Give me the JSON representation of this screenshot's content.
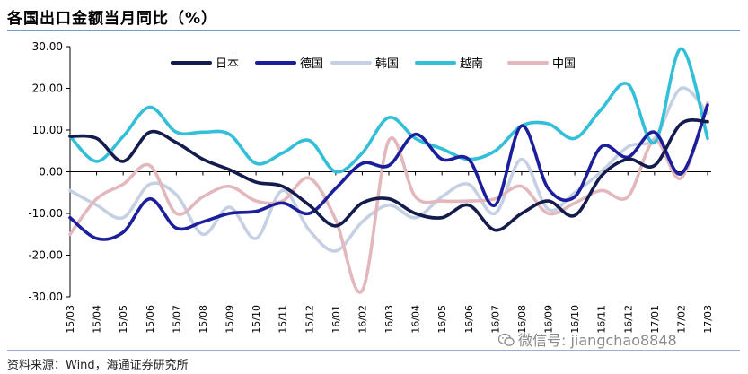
{
  "header": {
    "title": "各国出口金额当月同比（%）"
  },
  "footer": {
    "source": "资料来源：Wind，海通证券研究所"
  },
  "watermark": {
    "text": "微信号: jiangchao8848"
  },
  "chart_data": {
    "type": "line",
    "title": "各国出口金额当月同比（%）",
    "xlabel": "",
    "ylabel": "",
    "ylim": [
      -30,
      30
    ],
    "yticks": [
      30,
      20,
      10,
      0,
      -10,
      -20,
      -30
    ],
    "ytick_labels": [
      "30.00",
      "20.00",
      "10.00",
      "0.00",
      "-10.00",
      "-20.00",
      "-30.00"
    ],
    "legend_position": "top",
    "grid": false,
    "categories": [
      "15/03",
      "15/04",
      "15/05",
      "15/06",
      "15/07",
      "15/08",
      "15/09",
      "15/10",
      "15/11",
      "15/12",
      "16/01",
      "16/02",
      "16/03",
      "16/04",
      "16/05",
      "16/06",
      "16/07",
      "16/08",
      "16/09",
      "16/10",
      "16/11",
      "16/12",
      "17/01",
      "17/02",
      "17/03"
    ],
    "series": [
      {
        "name": "日本",
        "color": "#141b4d",
        "values": [
          8.5,
          8,
          2.5,
          9.5,
          7,
          3,
          0.5,
          -2.5,
          -3.5,
          -8,
          -13,
          -7.5,
          -6.5,
          -10,
          -11,
          -8,
          -14,
          -10,
          -7,
          -10.5,
          -1,
          3,
          1.5,
          11.5,
          12
        ]
      },
      {
        "name": "德国",
        "color": "#1c1f9c",
        "values": [
          -11,
          -16,
          -14.5,
          -6.5,
          -13.5,
          -12,
          -10,
          -9.5,
          -7.5,
          -10,
          -4,
          2,
          1.5,
          9,
          3,
          3,
          -8,
          11,
          -4,
          -6,
          6,
          3.5,
          9.5,
          -0.5,
          16
        ]
      },
      {
        "name": "韩国",
        "color": "#c5d1e3",
        "values": [
          -4.5,
          -8,
          -11,
          -3,
          -5.5,
          -15,
          -8.5,
          -16,
          -4.5,
          -14,
          -19,
          -12,
          -8,
          -11,
          -6,
          -3,
          -10,
          3,
          -9,
          -5,
          0,
          6,
          8,
          20,
          14
        ]
      },
      {
        "name": "越南",
        "color": "#33bfd8",
        "values": [
          8.5,
          2.5,
          8.5,
          15.5,
          9.5,
          9.5,
          9,
          2,
          4.5,
          7.5,
          0,
          4.5,
          13,
          8,
          5.5,
          3,
          5,
          11,
          11.5,
          8,
          15,
          21,
          7,
          29.5,
          8
        ]
      },
      {
        "name": "中国",
        "color": "#e2b8bd",
        "values": [
          -15,
          -6.5,
          -3,
          1.5,
          -10,
          -6,
          -3.5,
          -7,
          -7,
          -1.5,
          -11.5,
          -28.5,
          7.5,
          -6,
          -7,
          -7,
          -6.5,
          -3.5,
          -10,
          -7.5,
          -4.5,
          -6,
          7.5,
          -1.5,
          16.5
        ]
      }
    ]
  }
}
